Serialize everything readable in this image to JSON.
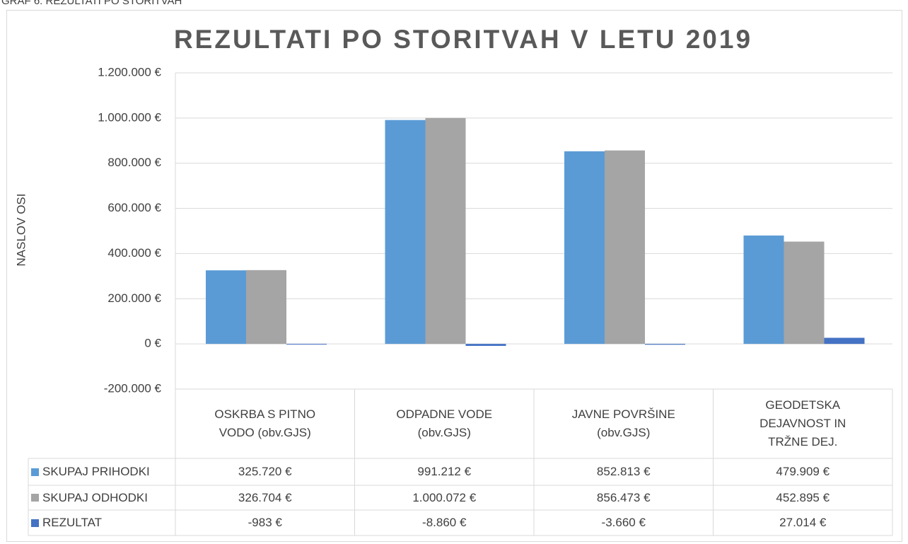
{
  "caption": "GRAF 6: REZULTATI PO STORITVAH",
  "chart_data": {
    "type": "bar",
    "title": "REZULTATI PO STORITVAH V LETU 2019",
    "y_label": "NASLOV OSI",
    "categories": [
      "OSKRBA S PITNO VODO (obv.GJS)",
      "ODPADNE VODE (obv.GJS)",
      "JAVNE POVRŠINE (obv.GJS)",
      "GEODETSKA DEJAVNOST IN TRŽNE DEJ."
    ],
    "series": [
      {
        "name": "SKUPAJ PRIHODKI",
        "color": "#5b9bd5",
        "values": [
          325720,
          991212,
          852813,
          479909
        ],
        "value_labels": [
          "325.720 €",
          "991.212 €",
          "852.813 €",
          "479.909 €"
        ]
      },
      {
        "name": "SKUPAJ ODHODKI",
        "color": "#a5a5a5",
        "values": [
          326704,
          1000072,
          856473,
          452895
        ],
        "value_labels": [
          "326.704 €",
          "1.000.072 €",
          "856.473 €",
          "452.895 €"
        ]
      },
      {
        "name": "REZULTAT",
        "color": "#4472c4",
        "values": [
          -983,
          -8860,
          -3660,
          27014
        ],
        "value_labels": [
          "-983 €",
          "-8.860 €",
          "-3.660 €",
          "27.014 €"
        ]
      }
    ],
    "ylim": [
      -200000,
      1200000
    ],
    "yticks": [
      {
        "value": -200000,
        "label": "-200.000 €"
      },
      {
        "value": 0,
        "label": "0 €"
      },
      {
        "value": 200000,
        "label": "200.000 €"
      },
      {
        "value": 400000,
        "label": "400.000 €"
      },
      {
        "value": 600000,
        "label": "600.000 €"
      },
      {
        "value": 800000,
        "label": "800.000 €"
      },
      {
        "value": 1000000,
        "label": "1.000.000 €"
      },
      {
        "value": 1200000,
        "label": "1.200.000 €"
      }
    ],
    "grid": true
  }
}
